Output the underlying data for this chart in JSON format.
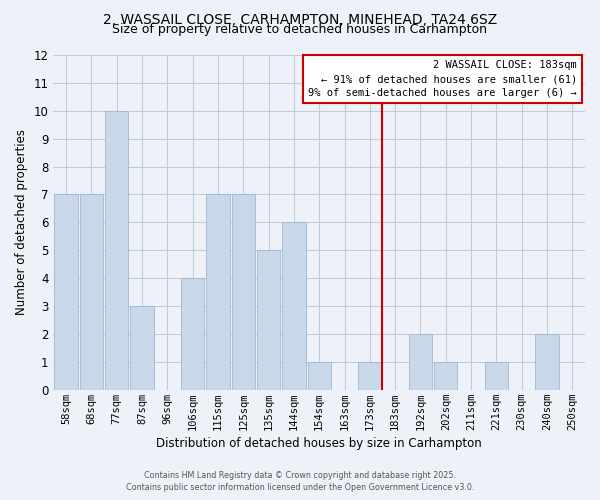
{
  "title": "2, WASSAIL CLOSE, CARHAMPTON, MINEHEAD, TA24 6SZ",
  "subtitle": "Size of property relative to detached houses in Carhampton",
  "xlabel": "Distribution of detached houses by size in Carhampton",
  "ylabel": "Number of detached properties",
  "bins": [
    "58sqm",
    "68sqm",
    "77sqm",
    "87sqm",
    "96sqm",
    "106sqm",
    "115sqm",
    "125sqm",
    "135sqm",
    "144sqm",
    "154sqm",
    "163sqm",
    "173sqm",
    "183sqm",
    "192sqm",
    "202sqm",
    "211sqm",
    "221sqm",
    "230sqm",
    "240sqm",
    "250sqm"
  ],
  "values": [
    7,
    7,
    10,
    3,
    0,
    4,
    7,
    7,
    5,
    6,
    1,
    0,
    1,
    0,
    2,
    1,
    0,
    1,
    0,
    2,
    0
  ],
  "bar_color": "#c8d8ea",
  "bar_edge_color": "#a0b8d0",
  "highlight_bin_index": 13,
  "highlight_color": "#cc0000",
  "annotation_title": "2 WASSAIL CLOSE: 183sqm",
  "annotation_line1": "← 91% of detached houses are smaller (61)",
  "annotation_line2": "9% of semi-detached houses are larger (6) →",
  "annotation_box_color": "#ffffff",
  "annotation_box_edge": "#cc0000",
  "ylim": [
    0,
    12
  ],
  "yticks": [
    0,
    1,
    2,
    3,
    4,
    5,
    6,
    7,
    8,
    9,
    10,
    11,
    12
  ],
  "footer1": "Contains HM Land Registry data © Crown copyright and database right 2025.",
  "footer2": "Contains public sector information licensed under the Open Government Licence v3.0.",
  "background_color": "#eef2f8",
  "grid_color": "#c0ccd8",
  "title_fontsize": 10,
  "subtitle_fontsize": 9
}
